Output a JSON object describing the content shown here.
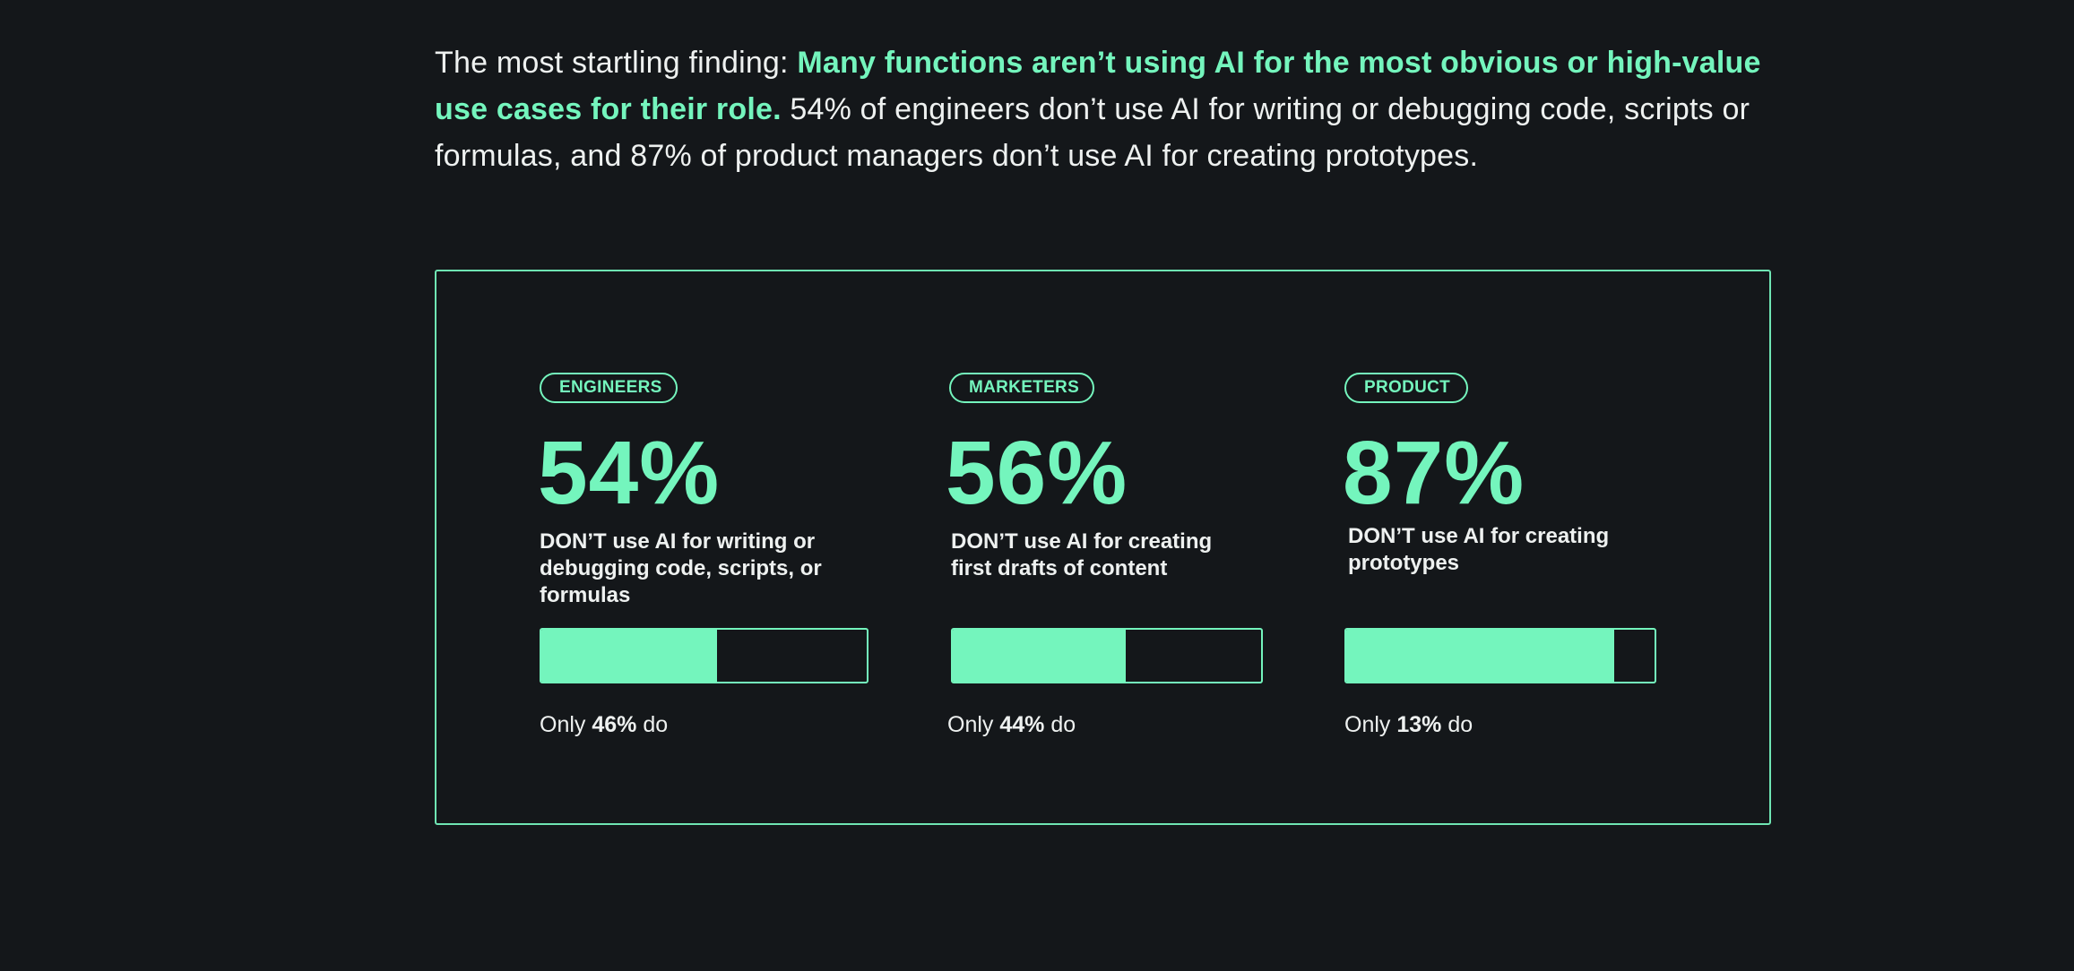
{
  "intro": {
    "lead": "The most startling finding: ",
    "highlight": "Many functions aren’t using AI for the most obvious or high-value use cases for their role.",
    "rest": " 54% of engineers don’t use AI for writing or debugging code, scripts or formulas, and 87% of product managers don’t use AI for creating prototypes."
  },
  "colors": {
    "background": "#14171a",
    "accent": "#74f5bd",
    "text": "#eef1f0"
  },
  "stats": [
    {
      "tag": "ENGINEERS",
      "percent": "54%",
      "description": "DON’T use AI for writing or debugging code, scripts, or formulas",
      "bar_fill_percent": 54,
      "note_prefix": "Only ",
      "note_value": "46%",
      "note_suffix": " do"
    },
    {
      "tag": "MARKETERS",
      "percent": "56%",
      "description": "DON’T use AI for creating first drafts of content",
      "bar_fill_percent": 56,
      "note_prefix": "Only ",
      "note_value": "44%",
      "note_suffix": " do"
    },
    {
      "tag": "PRODUCT",
      "percent": "87%",
      "description": "DON’T use AI for creating prototypes",
      "bar_fill_percent": 87,
      "note_prefix": "Only ",
      "note_value": "13%",
      "note_suffix": " do"
    }
  ]
}
